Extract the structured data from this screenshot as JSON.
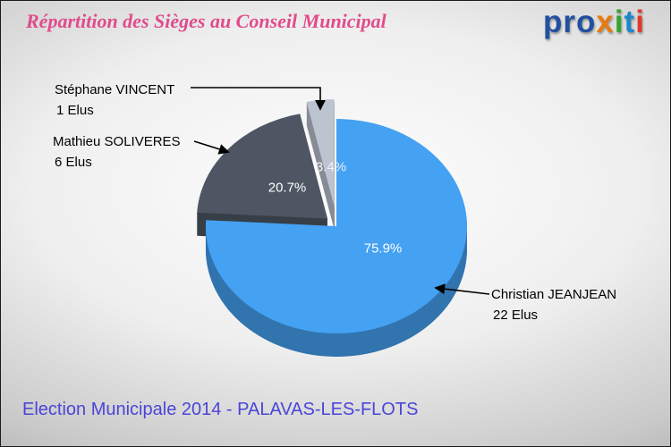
{
  "header": {
    "title": "Répartition des Sièges au Conseil Municipal"
  },
  "logo": {
    "text": "proxiti",
    "letters": [
      {
        "char": "p",
        "color": "#23509e"
      },
      {
        "char": "r",
        "color": "#23509e"
      },
      {
        "char": "o",
        "color": "#23509e"
      },
      {
        "char": "x",
        "color": "#e87b10"
      },
      {
        "char": "i",
        "color": "#36a42e"
      },
      {
        "char": "t",
        "color": "#1f86c9"
      },
      {
        "char": "i",
        "color": "#e0392a"
      }
    ]
  },
  "footer": {
    "text": "Election Municipale 2014 - PALAVAS-LES-FLOTS",
    "color": "#4a45d9"
  },
  "chart_data": {
    "type": "pie",
    "style": "3d-exploded",
    "title": "Répartition des Sièges au Conseil Municipal",
    "unit": "Elus",
    "legend_position": "callouts",
    "percent_labels_inside": true,
    "slices": [
      {
        "name": "Christian JEANJEAN",
        "elus": 22,
        "elus_label": "22 Elus",
        "value": 75.9,
        "percent_label": "75.9%",
        "color": "#45a1f2"
      },
      {
        "name": "Mathieu SOLIVERES",
        "elus": 6,
        "elus_label": "6 Elus",
        "value": 20.7,
        "percent_label": "20.7%",
        "color": "#4d5662"
      },
      {
        "name": "Stéphane VINCENT",
        "elus": 1,
        "elus_label": "1 Elus",
        "value": 3.4,
        "percent_label": "3.4%",
        "color": "#bcc4d0"
      }
    ]
  }
}
